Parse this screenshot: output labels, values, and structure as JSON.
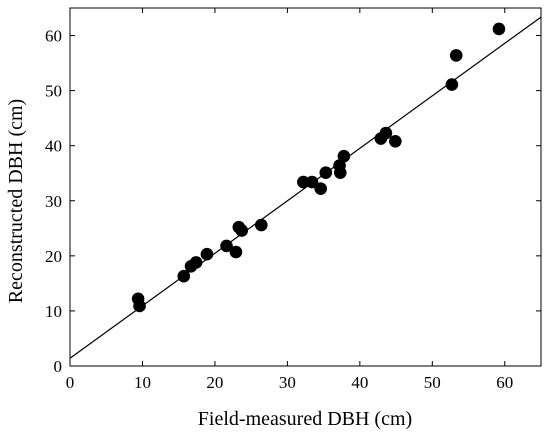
{
  "chart_data": {
    "type": "scatter",
    "title": "",
    "xlabel": "Field-measured DBH (cm)",
    "ylabel": "Reconstructed DBH (cm)",
    "xlim": [
      0,
      65
    ],
    "ylim": [
      0,
      65
    ],
    "xticks": [
      "0",
      "10",
      "20",
      "30",
      "40",
      "50",
      "60"
    ],
    "yticks": [
      "0",
      "10",
      "20",
      "30",
      "40",
      "50",
      "60"
    ],
    "grid": false,
    "legend": "none",
    "marker_color": "#000000",
    "points": [
      {
        "x": 9.4,
        "y": 12.2
      },
      {
        "x": 9.6,
        "y": 10.9
      },
      {
        "x": 15.7,
        "y": 16.3
      },
      {
        "x": 16.7,
        "y": 18.1
      },
      {
        "x": 17.4,
        "y": 18.8
      },
      {
        "x": 18.9,
        "y": 20.3
      },
      {
        "x": 21.6,
        "y": 21.8
      },
      {
        "x": 22.9,
        "y": 20.7
      },
      {
        "x": 23.3,
        "y": 25.2
      },
      {
        "x": 23.7,
        "y": 24.6
      },
      {
        "x": 26.4,
        "y": 25.6
      },
      {
        "x": 32.2,
        "y": 33.4
      },
      {
        "x": 33.4,
        "y": 33.4
      },
      {
        "x": 34.6,
        "y": 32.2
      },
      {
        "x": 35.3,
        "y": 35.1
      },
      {
        "x": 37.2,
        "y": 36.4
      },
      {
        "x": 37.3,
        "y": 35.1
      },
      {
        "x": 37.8,
        "y": 38.1
      },
      {
        "x": 42.9,
        "y": 41.3
      },
      {
        "x": 43.6,
        "y": 42.3
      },
      {
        "x": 44.9,
        "y": 40.8
      },
      {
        "x": 52.7,
        "y": 51.1
      },
      {
        "x": 53.3,
        "y": 56.4
      },
      {
        "x": 59.2,
        "y": 61.2
      }
    ],
    "fit_line": {
      "slope": 0.953,
      "intercept": 1.4
    }
  }
}
